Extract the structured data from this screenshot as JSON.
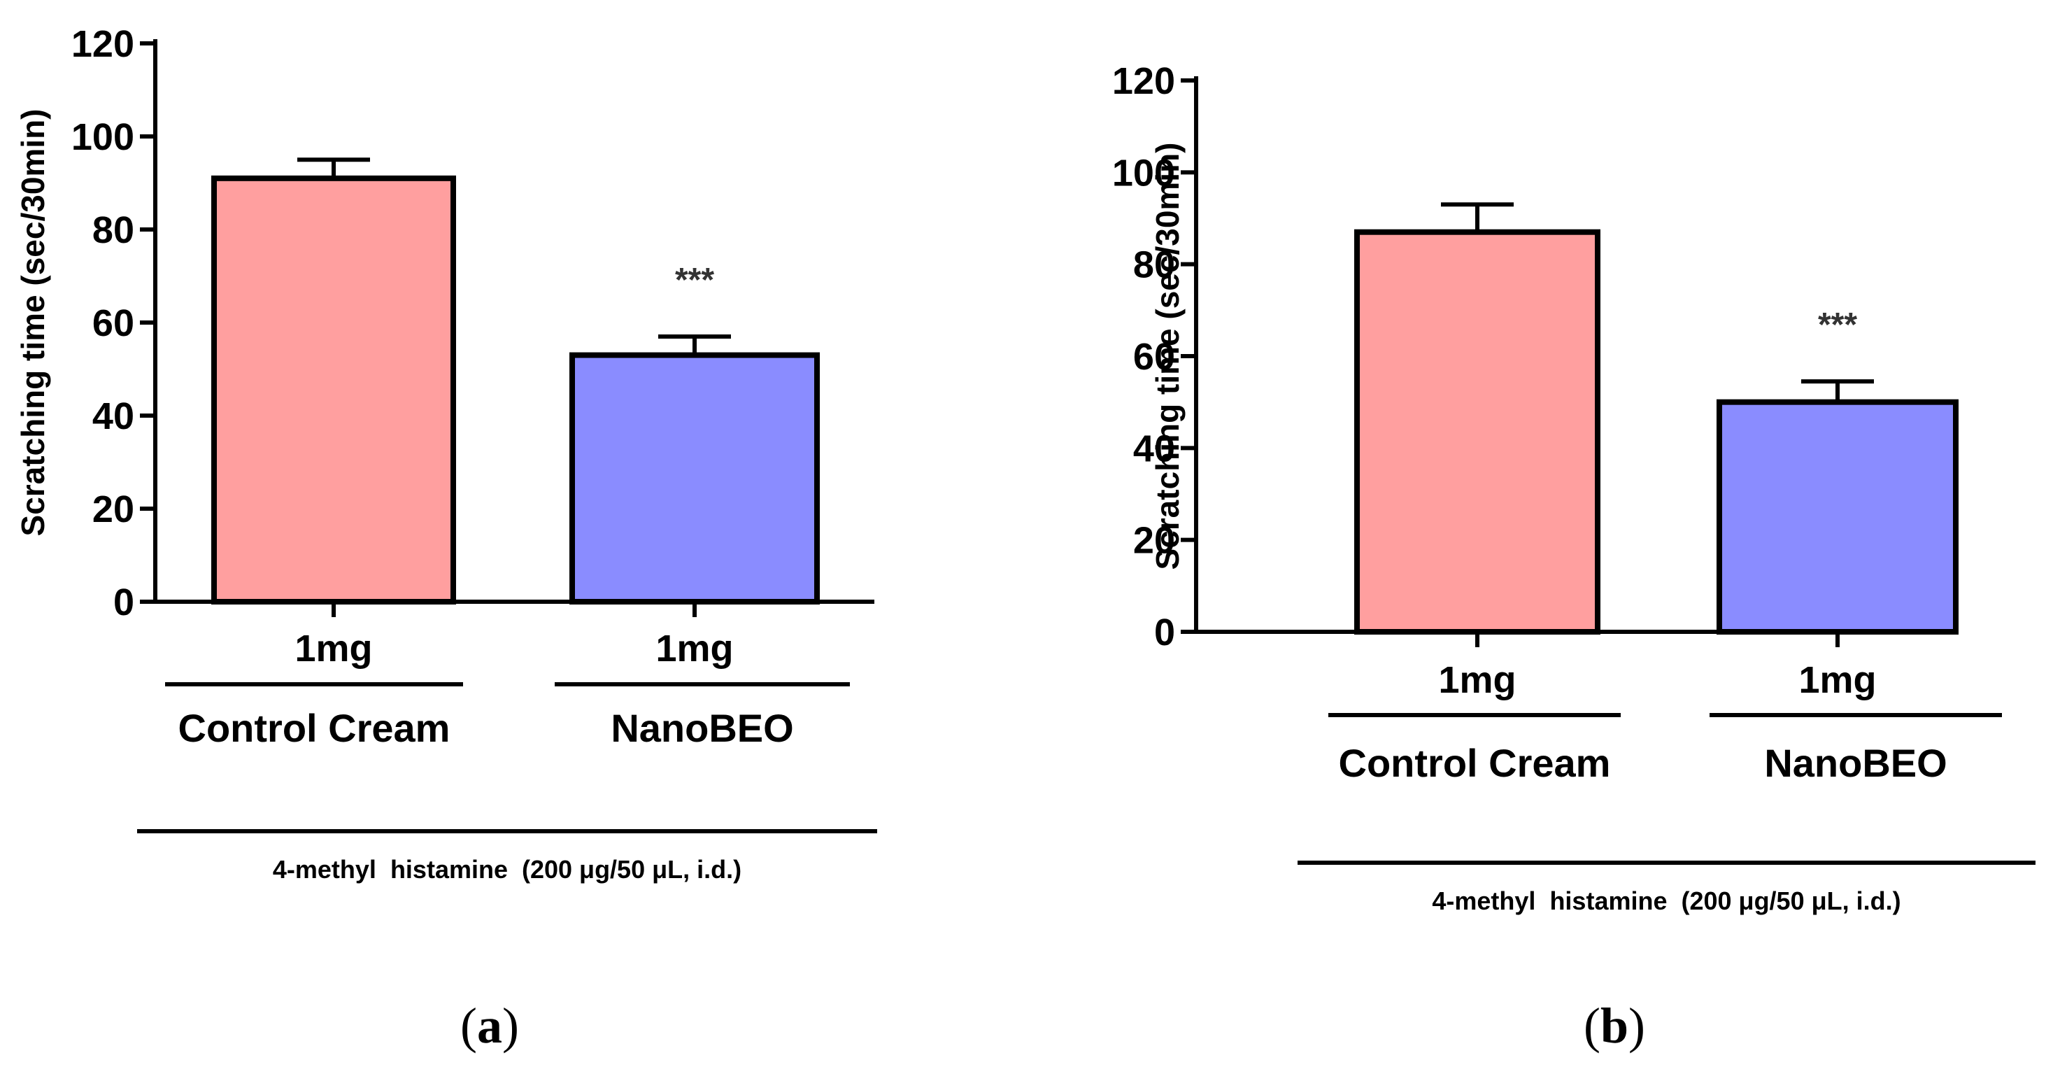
{
  "colors": {
    "control": "#FF9F9F",
    "nanobeo": "#8A8CFF",
    "axis": "#000000"
  },
  "chart_data": [
    {
      "type": "bar",
      "panel_label": "(a)",
      "panel_letter": "a",
      "ylabel": "Scratching time (sec/30min)",
      "ylim": [
        0,
        120
      ],
      "yticks": [
        0,
        20,
        40,
        60,
        80,
        100,
        120
      ],
      "categories": [
        "1mg",
        "1mg"
      ],
      "groups": [
        "Control Cream",
        "NanoBEO"
      ],
      "values": [
        91,
        53
      ],
      "errors": [
        4,
        4
      ],
      "significance": [
        "",
        "***"
      ],
      "treatment": "4-methyl  histamine  (200 μg/50 μL, i.d.)"
    },
    {
      "type": "bar",
      "panel_label": "(b)",
      "panel_letter": "b",
      "ylabel": "Scratching time (sec/30min)",
      "ylim": [
        0,
        120
      ],
      "yticks": [
        0,
        20,
        40,
        60,
        80,
        100,
        120
      ],
      "categories": [
        "1mg",
        "1mg"
      ],
      "groups": [
        "Control Cream",
        "NanoBEO"
      ],
      "values": [
        87,
        50
      ],
      "errors": [
        6,
        4.5
      ],
      "significance": [
        "",
        "***"
      ],
      "treatment": "4-methyl  histamine  (200 μg/50 μL, i.d.)"
    }
  ]
}
